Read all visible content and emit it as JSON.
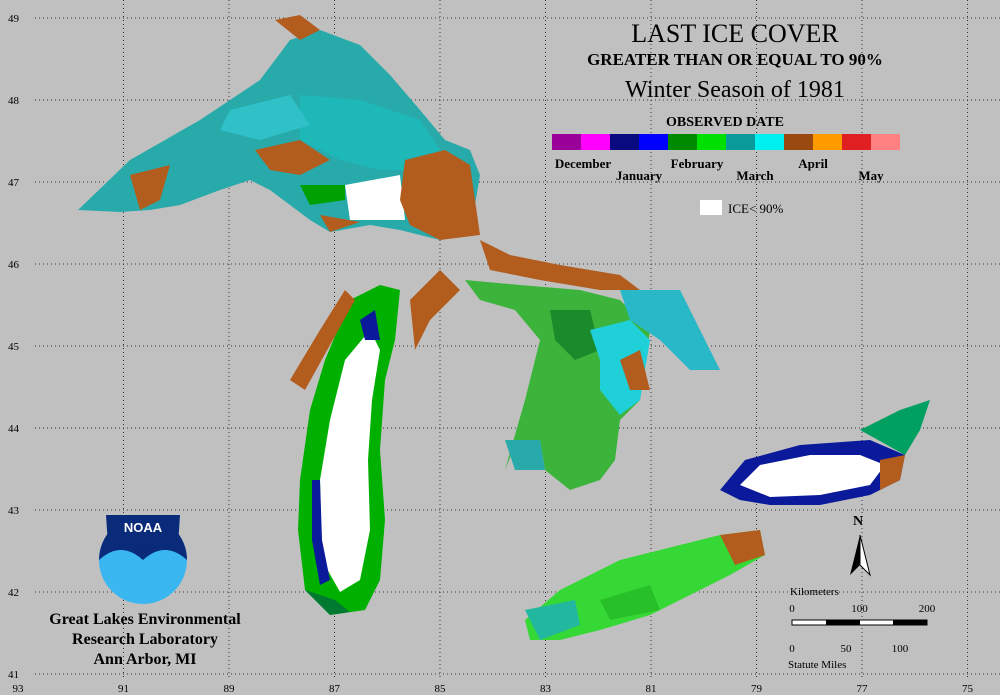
{
  "title": "LAST ICE COVER",
  "subtitle": "GREATER THAN OR EQUAL TO 90%",
  "season": "Winter Season of 1981",
  "legend": {
    "title": "OBSERVED DATE",
    "months": [
      "December",
      "January",
      "February",
      "March",
      "April",
      "May"
    ],
    "ice_note": "ICE< 90%"
  },
  "axes": {
    "latitude": [
      49,
      48,
      47,
      46,
      45,
      44,
      43,
      42,
      41
    ],
    "longitude": [
      93,
      91,
      89,
      87,
      85,
      83,
      81,
      79,
      77,
      75
    ]
  },
  "scale": {
    "km_label": "Kilometers",
    "km_ticks": [
      0,
      100,
      200
    ],
    "mile_label": "Statute Miles",
    "mile_ticks": [
      0,
      50,
      100
    ]
  },
  "north": "N",
  "logo": "NOAA",
  "organization": [
    "Great Lakes Environmental",
    "Research Laboratory",
    "Ann Arbor, MI"
  ]
}
